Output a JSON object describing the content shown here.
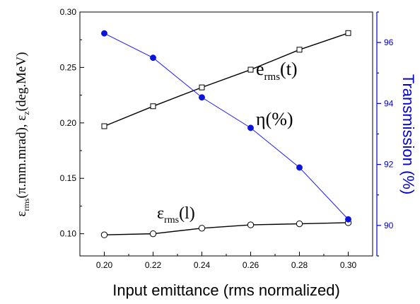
{
  "chart_data": {
    "type": "line",
    "x": [
      0.2,
      0.22,
      0.24,
      0.26,
      0.28,
      0.3
    ],
    "xlabel": "Input emittance (rms normalized)",
    "xlim": [
      0.19,
      0.31
    ],
    "x_ticks": [
      "0.20",
      "0.22",
      "0.24",
      "0.26",
      "0.28",
      "0.30"
    ],
    "ylim_left": [
      0.08,
      0.3
    ],
    "y_ticks_left": [
      "0.10",
      "0.15",
      "0.20",
      "0.25",
      "0.30"
    ],
    "ylim_right": [
      89.0,
      97.0
    ],
    "y_ticks_right": [
      "90",
      "92",
      "94",
      "96"
    ],
    "ylabel_right": "Transmission (%)",
    "ylabel_left": {
      "eps": "ε",
      "sub_rms": "rms",
      "mid": "(π.mm.mrad), ε",
      "sub_z": "z",
      "end": "(deg.MeV)"
    },
    "grid": false,
    "colors": {
      "black": "#000000",
      "blue": "#0000cc",
      "blue_series": "#1a1aff",
      "blue_dot": "#0a14dc"
    },
    "series": [
      {
        "axis": "left",
        "marker": "open-square",
        "values": [
          0.197,
          0.215,
          0.232,
          0.248,
          0.266,
          0.281
        ],
        "label": {
          "main": "e",
          "sub": "rms",
          "tail": "(t)"
        }
      },
      {
        "axis": "left",
        "marker": "open-circle",
        "values": [
          0.099,
          0.1,
          0.105,
          0.108,
          0.109,
          0.11
        ],
        "label": {
          "main": "ε",
          "sub": "rms",
          "tail": "(l)"
        }
      },
      {
        "axis": "right",
        "marker": "filled-circle",
        "values": [
          96.3,
          95.5,
          94.2,
          93.2,
          91.9,
          90.2
        ],
        "label": {
          "main": "η(%)"
        }
      }
    ]
  }
}
